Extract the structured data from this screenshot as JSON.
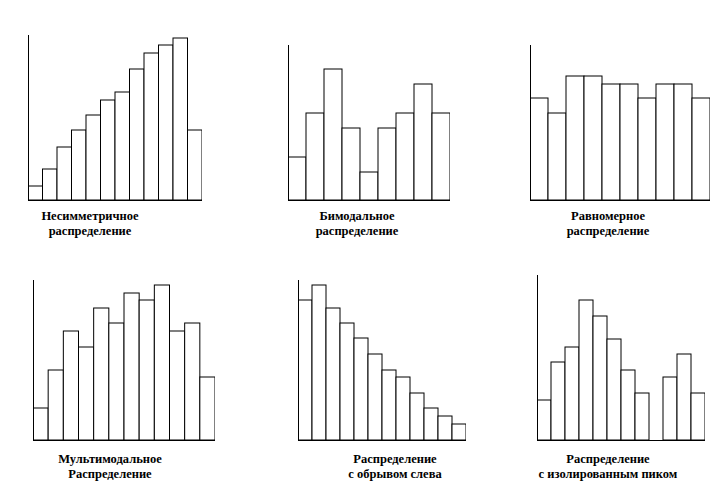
{
  "chart_data": [
    {
      "type": "bar",
      "title": "Несимметричное распределение",
      "categories": [
        null,
        null,
        null,
        null,
        null,
        null,
        null,
        null,
        null,
        null,
        null,
        null
      ],
      "values": [
        14,
        31,
        53,
        70,
        85,
        100,
        108,
        131,
        147,
        155,
        162,
        70
      ],
      "ylim": [
        0,
        165
      ],
      "tick_labels": false
    },
    {
      "type": "bar",
      "title": "Бимодальное распределение",
      "categories": [
        null,
        null,
        null,
        null,
        null,
        null,
        null,
        null,
        null
      ],
      "values": [
        43,
        87,
        131,
        72,
        28,
        72,
        87,
        116,
        87
      ],
      "ylim": [
        0,
        155
      ],
      "tick_labels": false
    },
    {
      "type": "bar",
      "title": "Равномерное распределение",
      "categories": [
        null,
        null,
        null,
        null,
        null,
        null,
        null,
        null,
        null,
        null
      ],
      "values": [
        102,
        87,
        124,
        124,
        116,
        116,
        102,
        116,
        116,
        102
      ],
      "ylim": [
        0,
        155
      ],
      "tick_labels": false
    },
    {
      "type": "bar",
      "title": "Мультимодальное Распределение",
      "categories": [
        null,
        null,
        null,
        null,
        null,
        null,
        null,
        null,
        null,
        null,
        null,
        null
      ],
      "values": [
        32,
        70,
        109,
        93,
        132,
        117,
        147,
        140,
        155,
        109,
        117,
        63
      ],
      "ylim": [
        0,
        160
      ],
      "tick_labels": false
    },
    {
      "type": "bar",
      "title": "Распределение с обрывом слева",
      "categories": [
        null,
        null,
        null,
        null,
        null,
        null,
        null,
        null,
        null,
        null,
        null,
        null
      ],
      "values": [
        140,
        155,
        132,
        117,
        102,
        86,
        70,
        63,
        47,
        32,
        24,
        16
      ],
      "ylim": [
        0,
        160
      ],
      "tick_labels": false
    },
    {
      "type": "bar",
      "title": "Распределение с изолированным пиком",
      "categories": [
        null,
        null,
        null,
        null,
        null,
        null,
        null,
        null,
        null,
        null,
        null,
        null
      ],
      "values": [
        40,
        78,
        93,
        140,
        124,
        101,
        70,
        47,
        0,
        63,
        86,
        47
      ],
      "ylim": [
        0,
        165
      ],
      "tick_labels": false
    }
  ]
}
